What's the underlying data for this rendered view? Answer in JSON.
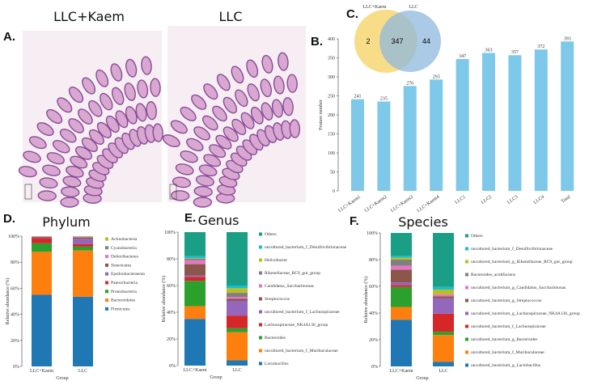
{
  "panel_a": {
    "label": "A.",
    "titles": [
      "LLC+Kaem",
      "LLC"
    ]
  },
  "panel_c": {
    "label": "C.",
    "sets": [
      "LLC+Kaem",
      "LLC"
    ],
    "only_first": "2",
    "shared": "347",
    "only_second": "44",
    "colors": [
      "#f7d774",
      "#8fb8de"
    ]
  },
  "chart_data": [
    {
      "panel": "B.",
      "type": "bar",
      "ylabel": "Feature number",
      "ylim": [
        0,
        400
      ],
      "yticks": [
        0,
        50,
        100,
        150,
        200,
        250,
        300,
        350,
        400
      ],
      "categories": [
        "LLC+Kaem1",
        "LLC+Kaem2",
        "LLC+Kaem3",
        "LLC+Kaem4",
        "LLC1",
        "LLC2",
        "LLC3",
        "LLC4",
        "Total"
      ],
      "values": [
        241,
        235,
        276,
        293,
        347,
        363,
        357,
        372,
        393
      ],
      "color": "#7ec8ea"
    },
    {
      "panel": "D.",
      "type": "stacked-bar",
      "title": "Phylum",
      "xlabel": "Group",
      "ylabel": "Relative abundance (%)",
      "ylim": [
        0,
        100
      ],
      "yticks": [
        "0%",
        "20%",
        "40%",
        "60%",
        "80%",
        "100%"
      ],
      "categories": [
        "LLC+Kaem",
        "LLC"
      ],
      "legend": "right",
      "series": [
        {
          "name": "Firmicutes",
          "color": "#1f77b4",
          "values": [
            55,
            53.5
          ]
        },
        {
          "name": "Bacteroidetes",
          "color": "#ff7f0e",
          "values": [
            33,
            35.5
          ]
        },
        {
          "name": "Proteobacteria",
          "color": "#2ca02c",
          "values": [
            6.5,
            3
          ]
        },
        {
          "name": "Patescibacteria",
          "color": "#d62728",
          "values": [
            4,
            2
          ]
        },
        {
          "name": "Epsilonbacteraeota",
          "color": "#9467bd",
          "values": [
            0.3,
            4
          ]
        },
        {
          "name": "Tenericutes",
          "color": "#8c564b",
          "values": [
            0.7,
            1
          ]
        },
        {
          "name": "Deferribacteres",
          "color": "#e377c2",
          "values": [
            0.2,
            0.5
          ]
        },
        {
          "name": "Cyanobacteria",
          "color": "#7f7f7f",
          "values": [
            0.2,
            0.3
          ]
        },
        {
          "name": "Actinobacteria",
          "color": "#bcbd22",
          "values": [
            0.1,
            0.2
          ]
        }
      ]
    },
    {
      "panel": "E.",
      "type": "stacked-bar",
      "title": "Genus",
      "xlabel": "Group",
      "ylabel": "Relative abundance (%)",
      "ylim": [
        0,
        100
      ],
      "yticks": [
        "0%",
        "20%",
        "40%",
        "60%",
        "80%",
        "100%"
      ],
      "categories": [
        "LLC+Kaem",
        "LLC"
      ],
      "legend": "right",
      "series": [
        {
          "name": "Lactobacillus",
          "color": "#1f77b4",
          "values": [
            35,
            4
          ]
        },
        {
          "name": "uncultured_bacterium_f_Muribaculaceae",
          "color": "#ff7f0e",
          "values": [
            9.5,
            21
          ]
        },
        {
          "name": "Bacteroides",
          "color": "#2ca02c",
          "values": [
            19,
            3
          ]
        },
        {
          "name": "Lachnospiraceae_NK4A136_group",
          "color": "#d62728",
          "values": [
            3,
            9.5
          ]
        },
        {
          "name": "uncultured_bacterium_f_Lachnospiraceae",
          "color": "#9467bd",
          "values": [
            1,
            11
          ]
        },
        {
          "name": "Streptococcus",
          "color": "#8c564b",
          "values": [
            8.5,
            1.5
          ]
        },
        {
          "name": "Candidatus_Saccharimonas",
          "color": "#e377c2",
          "values": [
            3,
            1.5
          ]
        },
        {
          "name": "Rikenellaceae_RC9_gut_group",
          "color": "#7f7f7f",
          "values": [
            1,
            3
          ]
        },
        {
          "name": "Helicobacter",
          "color": "#bcbd22",
          "values": [
            0.5,
            3.5
          ]
        },
        {
          "name": "uncultured_bacterium_f_Desulfovibrionaceae",
          "color": "#17becf",
          "values": [
            1.5,
            2
          ]
        },
        {
          "name": "Others",
          "color": "#1a9e85",
          "values": [
            18,
            40
          ]
        }
      ]
    },
    {
      "panel": "F.",
      "type": "stacked-bar",
      "title": "Species",
      "xlabel": "Group",
      "ylabel": "Relative abundance (%)",
      "ylim": [
        0,
        100
      ],
      "yticks": [
        "0%",
        "20%",
        "40%",
        "60%",
        "80%",
        "100%"
      ],
      "categories": [
        "LLC+Kaem",
        "LLC"
      ],
      "legend": "right",
      "series": [
        {
          "name": "uncultured_bacterium_g_Lactobacillus",
          "color": "#1f77b4",
          "values": [
            35,
            3.5
          ]
        },
        {
          "name": "uncultured_bacterium_f_Muribaculaceae",
          "color": "#ff7f0e",
          "values": [
            9.5,
            20
          ]
        },
        {
          "name": "uncultured_bacterium_g_Bacteroides",
          "color": "#2ca02c",
          "values": [
            15,
            2.5
          ]
        },
        {
          "name": "uncultured_bacterium_f_Lachnospiraceae",
          "color": "#d62728",
          "values": [
            1.5,
            13.5
          ]
        },
        {
          "name": "uncultured_bacterium_g_Lachnospiraceae_NK4A136_group",
          "color": "#9467bd",
          "values": [
            2,
            11.5
          ]
        },
        {
          "name": "uncultured_bacterium_g_Streptococcus",
          "color": "#8c564b",
          "values": [
            9.5,
            1.5
          ]
        },
        {
          "name": "uncultured_bacterium_g_Candidatus_Saccharimonas",
          "color": "#e377c2",
          "values": [
            3,
            1.5
          ]
        },
        {
          "name": "Bacteroides_acidifaciens",
          "color": "#7f7f7f",
          "values": [
            4.5,
            0
          ]
        },
        {
          "name": "uncultured_bacterium_g_Rikenellaceae_RC9_gut_group",
          "color": "#bcbd22",
          "values": [
            1.5,
            3.5
          ]
        },
        {
          "name": "uncultured_bacterium_f_Desulfovibrionaceae",
          "color": "#17becf",
          "values": [
            1.5,
            2
          ]
        },
        {
          "name": "Others",
          "color": "#1a9e85",
          "values": [
            17,
            40.5
          ]
        }
      ]
    }
  ]
}
